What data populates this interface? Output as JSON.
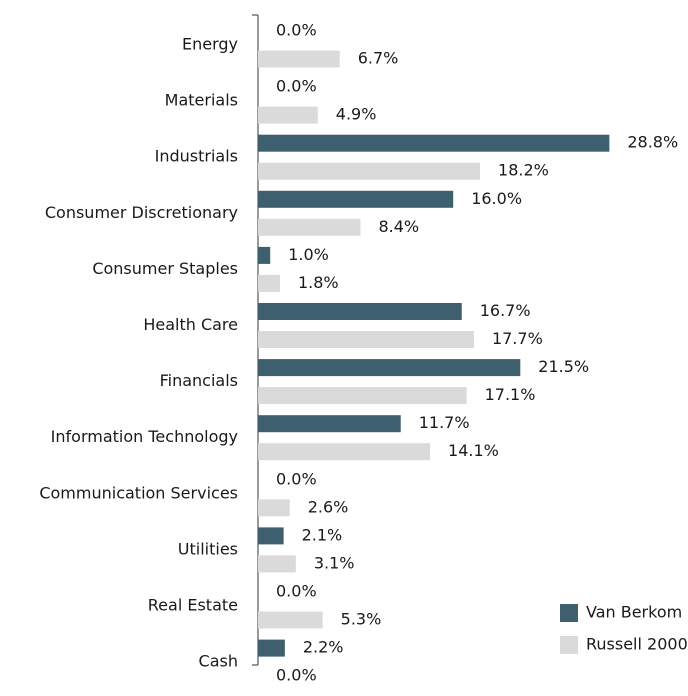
{
  "chart_data": {
    "type": "bar",
    "orientation": "horizontal",
    "categories": [
      "Energy",
      "Materials",
      "Industrials",
      "Consumer Discretionary",
      "Consumer Staples",
      "Health Care",
      "Financials",
      "Information Technology",
      "Communication Services",
      "Utilities",
      "Real Estate",
      "Cash"
    ],
    "series": [
      {
        "name": "Van Berkom",
        "color": "#3e5f6d",
        "values": [
          0.0,
          0.0,
          28.8,
          16.0,
          1.0,
          16.7,
          21.5,
          11.7,
          0.0,
          2.1,
          0.0,
          2.2
        ],
        "value_labels": [
          "0.0%",
          "0.0%",
          "28.8%",
          "16.0%",
          "1.0%",
          "16.7%",
          "21.5%",
          "11.7%",
          "0.0%",
          "2.1%",
          "0.0%",
          "2.2%"
        ]
      },
      {
        "name": "Russell 2000",
        "color": "#d9dad9",
        "values": [
          6.7,
          4.9,
          18.2,
          8.4,
          1.8,
          17.7,
          17.1,
          14.1,
          2.6,
          3.1,
          5.3,
          0.0
        ],
        "value_labels": [
          "6.7%",
          "4.9%",
          "18.2%",
          "8.4%",
          "1.8%",
          "17.7%",
          "17.1%",
          "14.1%",
          "2.6%",
          "3.1%",
          "5.3%",
          "0.0%"
        ]
      }
    ],
    "legend": "lower right"
  }
}
